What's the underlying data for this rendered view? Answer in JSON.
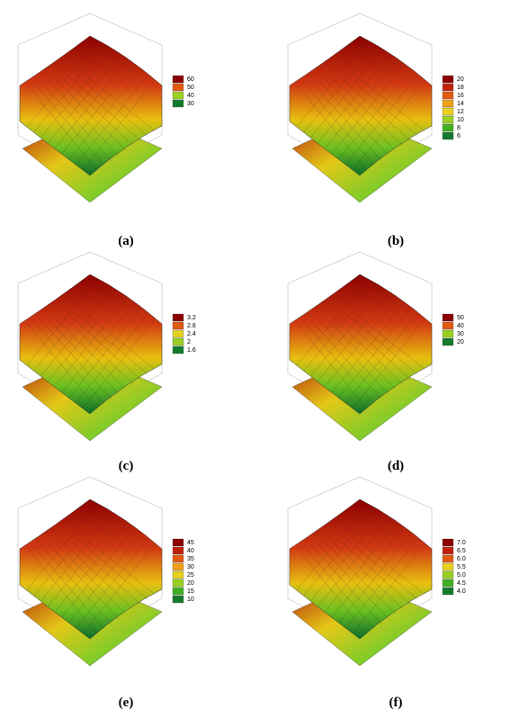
{
  "panels": [
    {
      "label": "(a)",
      "legend": [
        "60",
        "50",
        "40",
        "30"
      ]
    },
    {
      "label": "(b)",
      "legend": [
        "20",
        "18",
        "16",
        "14",
        "12",
        "10",
        "8",
        "6"
      ]
    },
    {
      "label": "(c)",
      "legend": [
        "3.2",
        "2.8",
        "2.4",
        "2",
        "1.6"
      ]
    },
    {
      "label": "(d)",
      "legend": [
        "50",
        "40",
        "30",
        "20"
      ]
    },
    {
      "label": "(e)",
      "legend": [
        "45",
        "40",
        "35",
        "30",
        "25",
        "20",
        "15",
        "10"
      ]
    },
    {
      "label": "(f)",
      "legend": [
        "7.0",
        "6.5",
        "6.0",
        "5.5",
        "5.0",
        "4.5",
        "4.0"
      ]
    }
  ]
}
